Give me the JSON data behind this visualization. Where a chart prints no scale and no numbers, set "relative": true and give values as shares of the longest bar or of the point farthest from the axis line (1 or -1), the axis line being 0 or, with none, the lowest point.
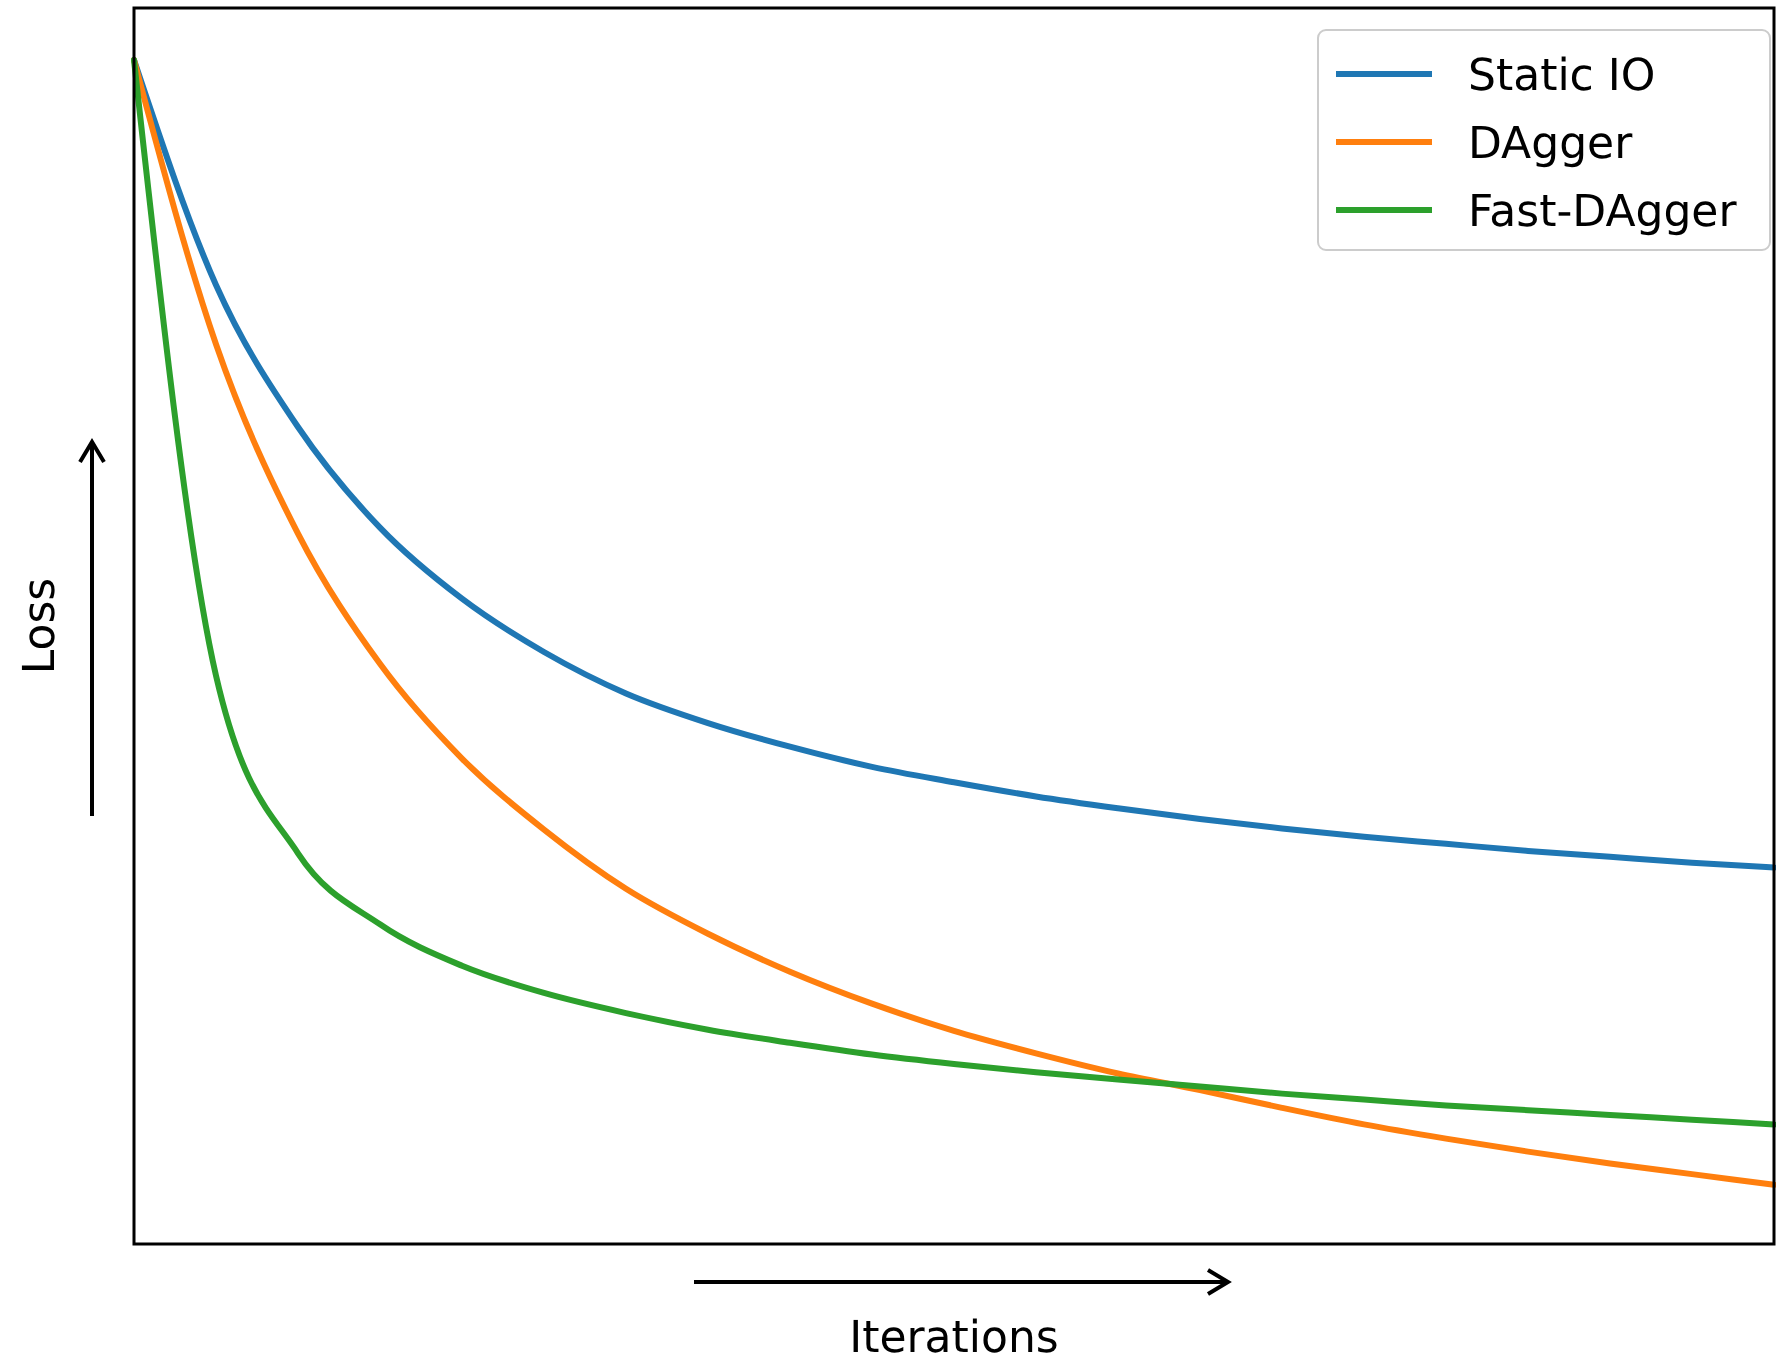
{
  "chart_data": {
    "type": "line",
    "relative": true,
    "xlabel": "Iterations",
    "ylabel": "Loss",
    "legend": "top right",
    "tick_labels": false,
    "categories": [
      null,
      null,
      null,
      null,
      null,
      null,
      null,
      null,
      null,
      null,
      null,
      null,
      null,
      null,
      null,
      null,
      null,
      null,
      null,
      null,
      null
    ],
    "series": [
      {
        "name": "Static IO",
        "color": "#1f77b4",
        "values": [
          1,
          0.81,
          0.69,
          0.605,
          0.545,
          0.5,
          0.465,
          0.44,
          0.42,
          0.403,
          0.39,
          0.378,
          0.368,
          0.359,
          0.351,
          0.344,
          0.338,
          0.332,
          0.327,
          0.322,
          0.318
        ]
      },
      {
        "name": "DAgger",
        "color": "#ff7f0e",
        "values": [
          1,
          0.76,
          0.6,
          0.49,
          0.41,
          0.35,
          0.3,
          0.262,
          0.23,
          0.203,
          0.18,
          0.161,
          0.144,
          0.13,
          0.115,
          0.101,
          0.089,
          0.078,
          0.068,
          0.059,
          0.05
        ]
      },
      {
        "name": "Fast-DAgger",
        "color": "#2ca02c",
        "values": [
          1,
          0.48,
          0.33,
          0.27,
          0.235,
          0.212,
          0.195,
          0.181,
          0.17,
          0.16,
          0.152,
          0.145,
          0.139,
          0.133,
          0.127,
          0.122,
          0.117,
          0.113,
          0.109,
          0.105,
          0.101
        ]
      }
    ]
  }
}
